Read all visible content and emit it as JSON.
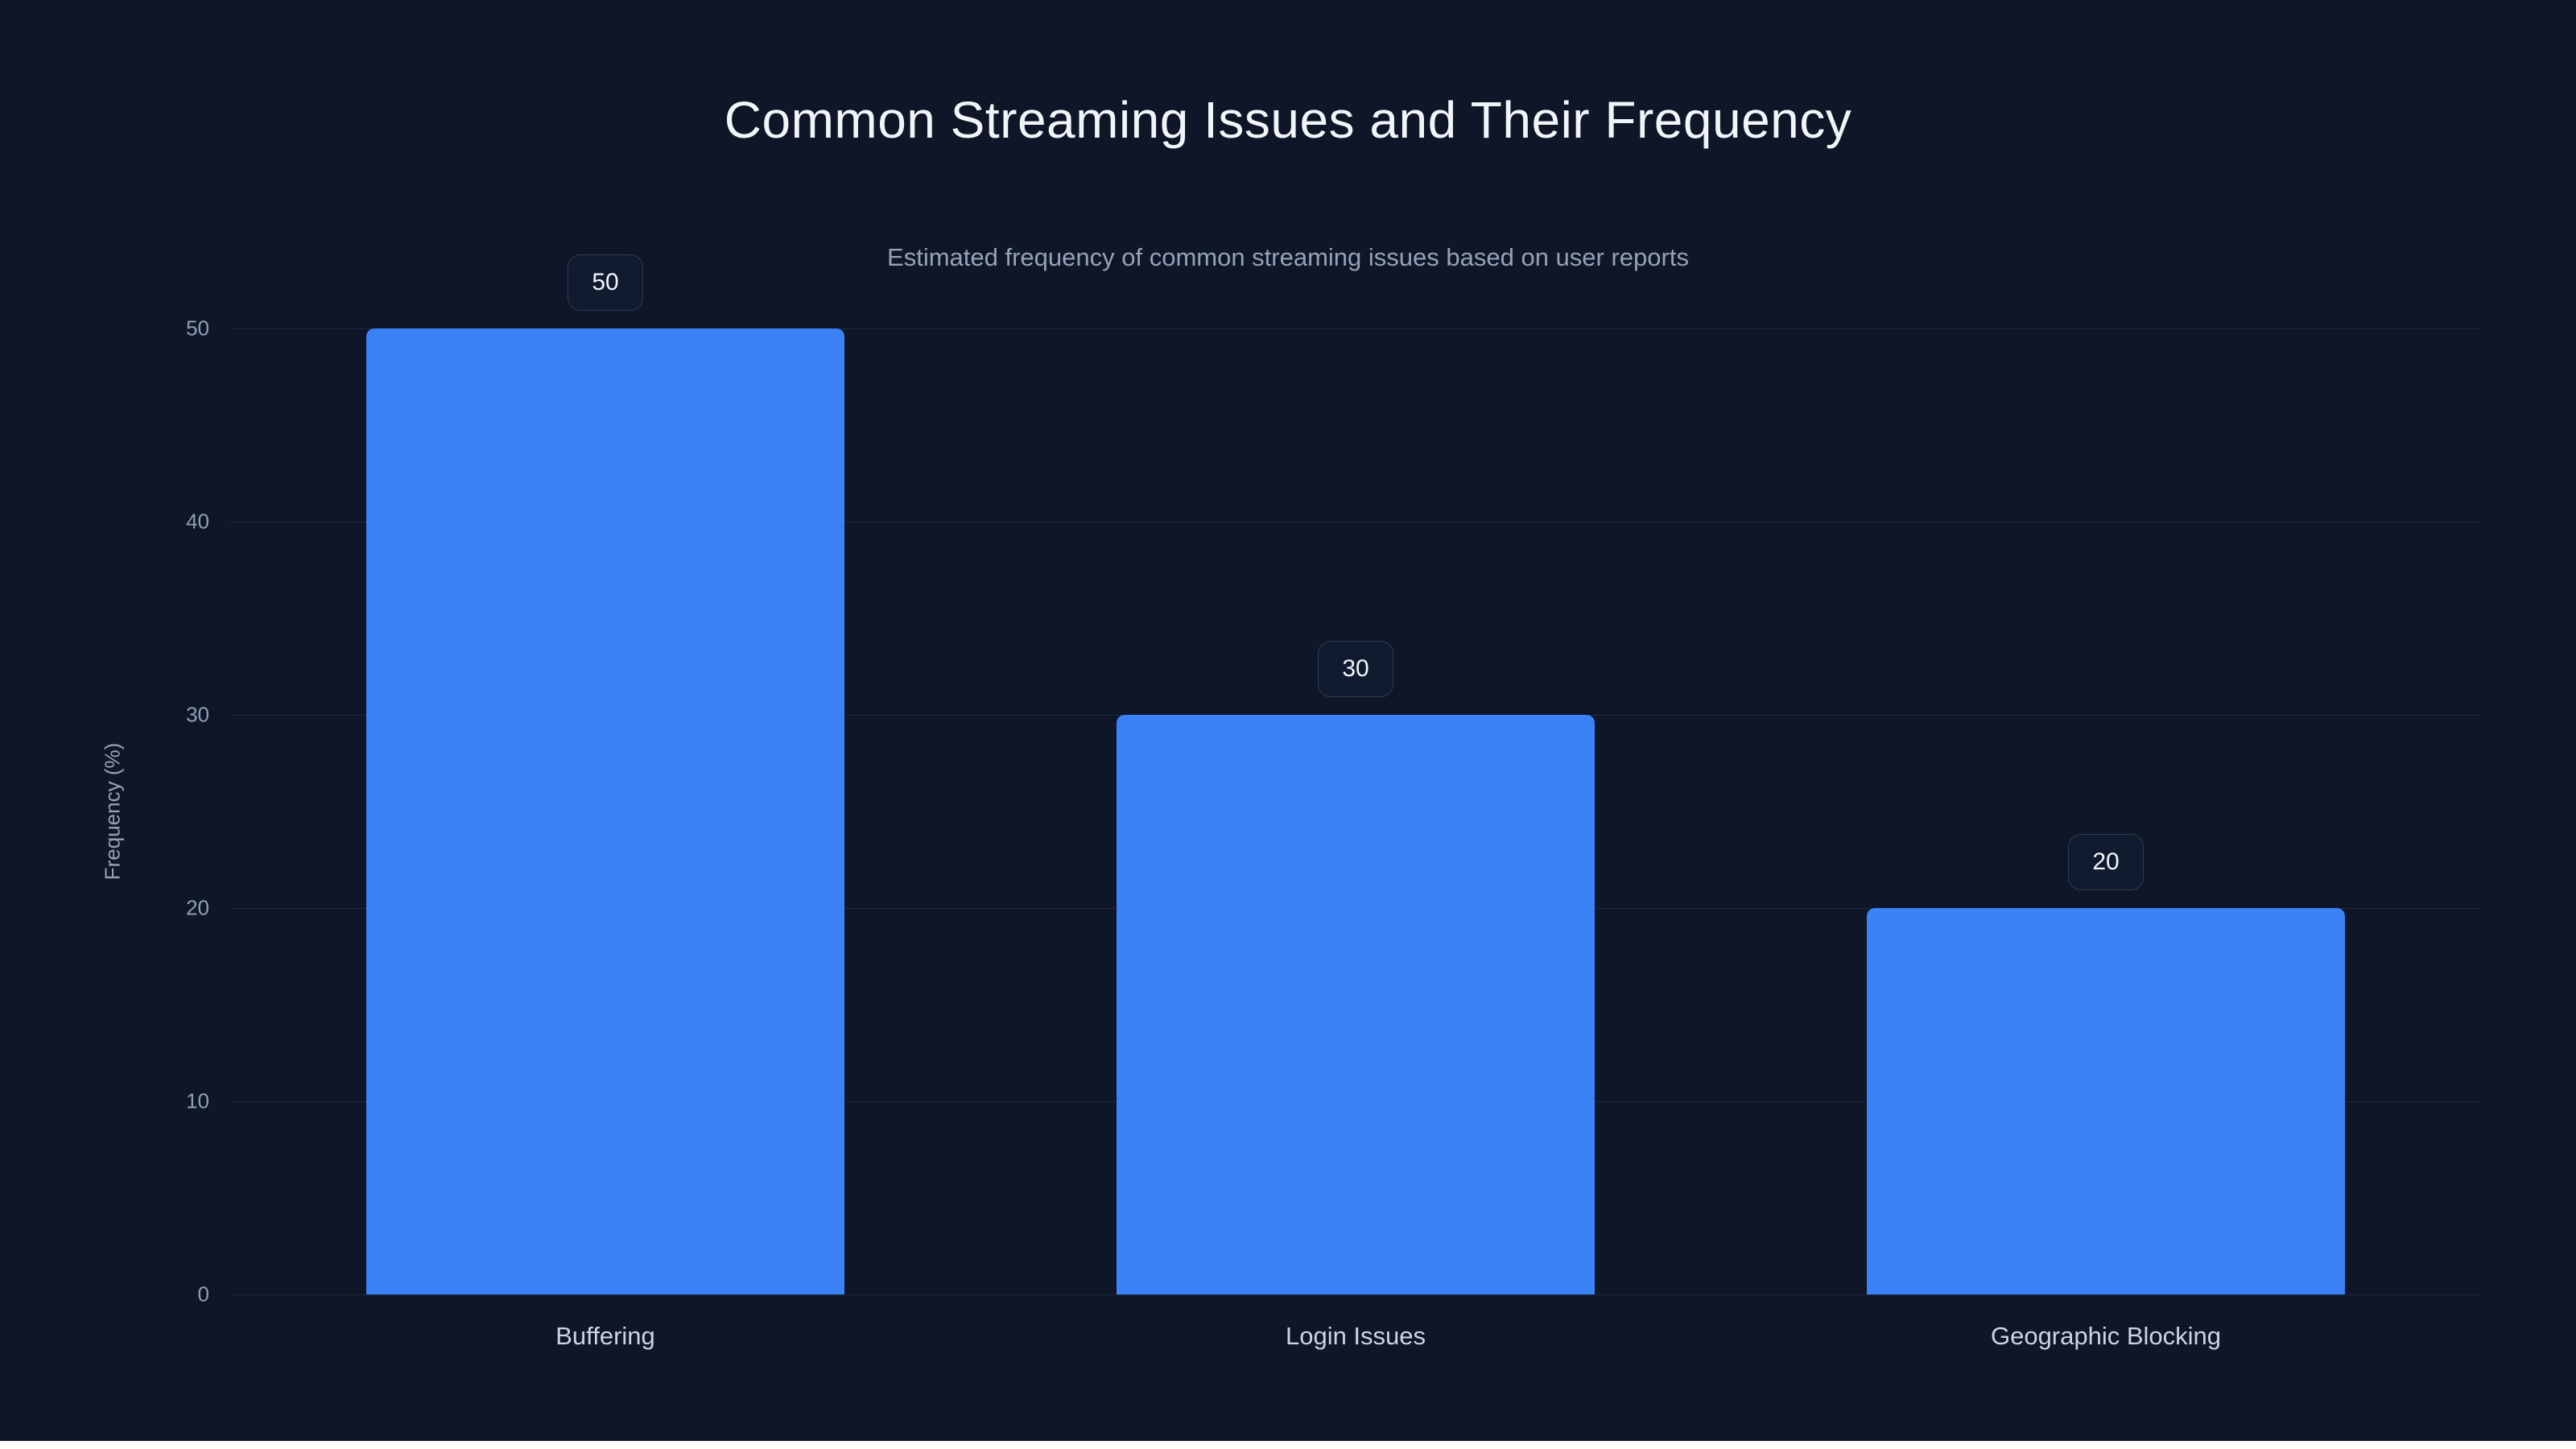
{
  "page": {
    "title": "Common Streaming Issues and Their Frequency",
    "subtitle": "Estimated frequency of common streaming issues based on user reports"
  },
  "chart_data": {
    "type": "bar",
    "title": "Common Streaming Issues and Their Frequency",
    "subtitle": "Estimated frequency of common streaming issues based on user reports",
    "categories": [
      "Buffering",
      "Login Issues",
      "Geographic Blocking"
    ],
    "values": [
      50,
      30,
      20
    ],
    "value_labels": [
      "50",
      "30",
      "20"
    ],
    "xlabel": "",
    "ylabel": "Frequency (%)",
    "ylim": [
      0,
      50
    ],
    "yticks": [
      0,
      10,
      20,
      30,
      40,
      50
    ],
    "grid": true,
    "legend": false,
    "bar_color": "#3b82f6",
    "background_color": "#0e1627",
    "gridline_color": "#1d2a3f",
    "title_color": "#f1f5f9",
    "subtitle_color": "#94a3b8",
    "tick_color": "#8fa0b5"
  }
}
